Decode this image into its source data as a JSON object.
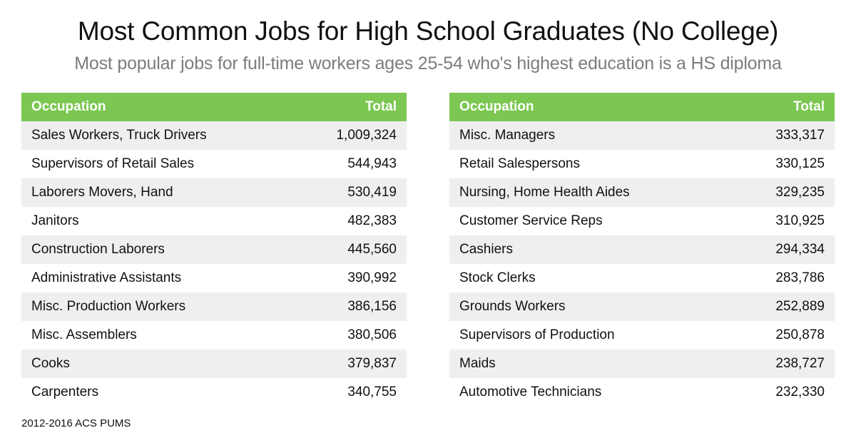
{
  "title": "Most Common Jobs for High School Graduates (No College)",
  "subtitle": "Most popular jobs for full-time workers ages 25-54 who's highest education is a HS diploma",
  "source": "2012-2016 ACS PUMS",
  "colors": {
    "header_bg": "#7bc751",
    "header_text": "#ffffff",
    "row_shade": "#efefef",
    "subtitle": "#7c7c7c"
  },
  "chart_data": [
    {
      "type": "table",
      "columns": [
        "Occupation",
        "Total"
      ],
      "rows": [
        [
          "Sales Workers, Truck Drivers",
          "1,009,324"
        ],
        [
          "Supervisors of Retail Sales",
          "544,943"
        ],
        [
          "Laborers Movers, Hand",
          "530,419"
        ],
        [
          "Janitors",
          "482,383"
        ],
        [
          "Construction Laborers",
          "445,560"
        ],
        [
          "Administrative Assistants",
          "390,992"
        ],
        [
          "Misc. Production Workers",
          "386,156"
        ],
        [
          "Misc. Assemblers",
          "380,506"
        ],
        [
          "Cooks",
          "379,837"
        ],
        [
          "Carpenters",
          "340,755"
        ]
      ]
    },
    {
      "type": "table",
      "columns": [
        "Occupation",
        "Total"
      ],
      "rows": [
        [
          "Misc. Managers",
          "333,317"
        ],
        [
          "Retail Salespersons",
          "330,125"
        ],
        [
          "Nursing, Home Health Aides",
          "329,235"
        ],
        [
          "Customer Service Reps",
          "310,925"
        ],
        [
          "Cashiers",
          "294,334"
        ],
        [
          "Stock Clerks",
          "283,786"
        ],
        [
          "Grounds Workers",
          "252,889"
        ],
        [
          "Supervisors of Production",
          "250,878"
        ],
        [
          "Maids",
          "238,727"
        ],
        [
          "Automotive Technicians",
          "232,330"
        ]
      ]
    }
  ]
}
